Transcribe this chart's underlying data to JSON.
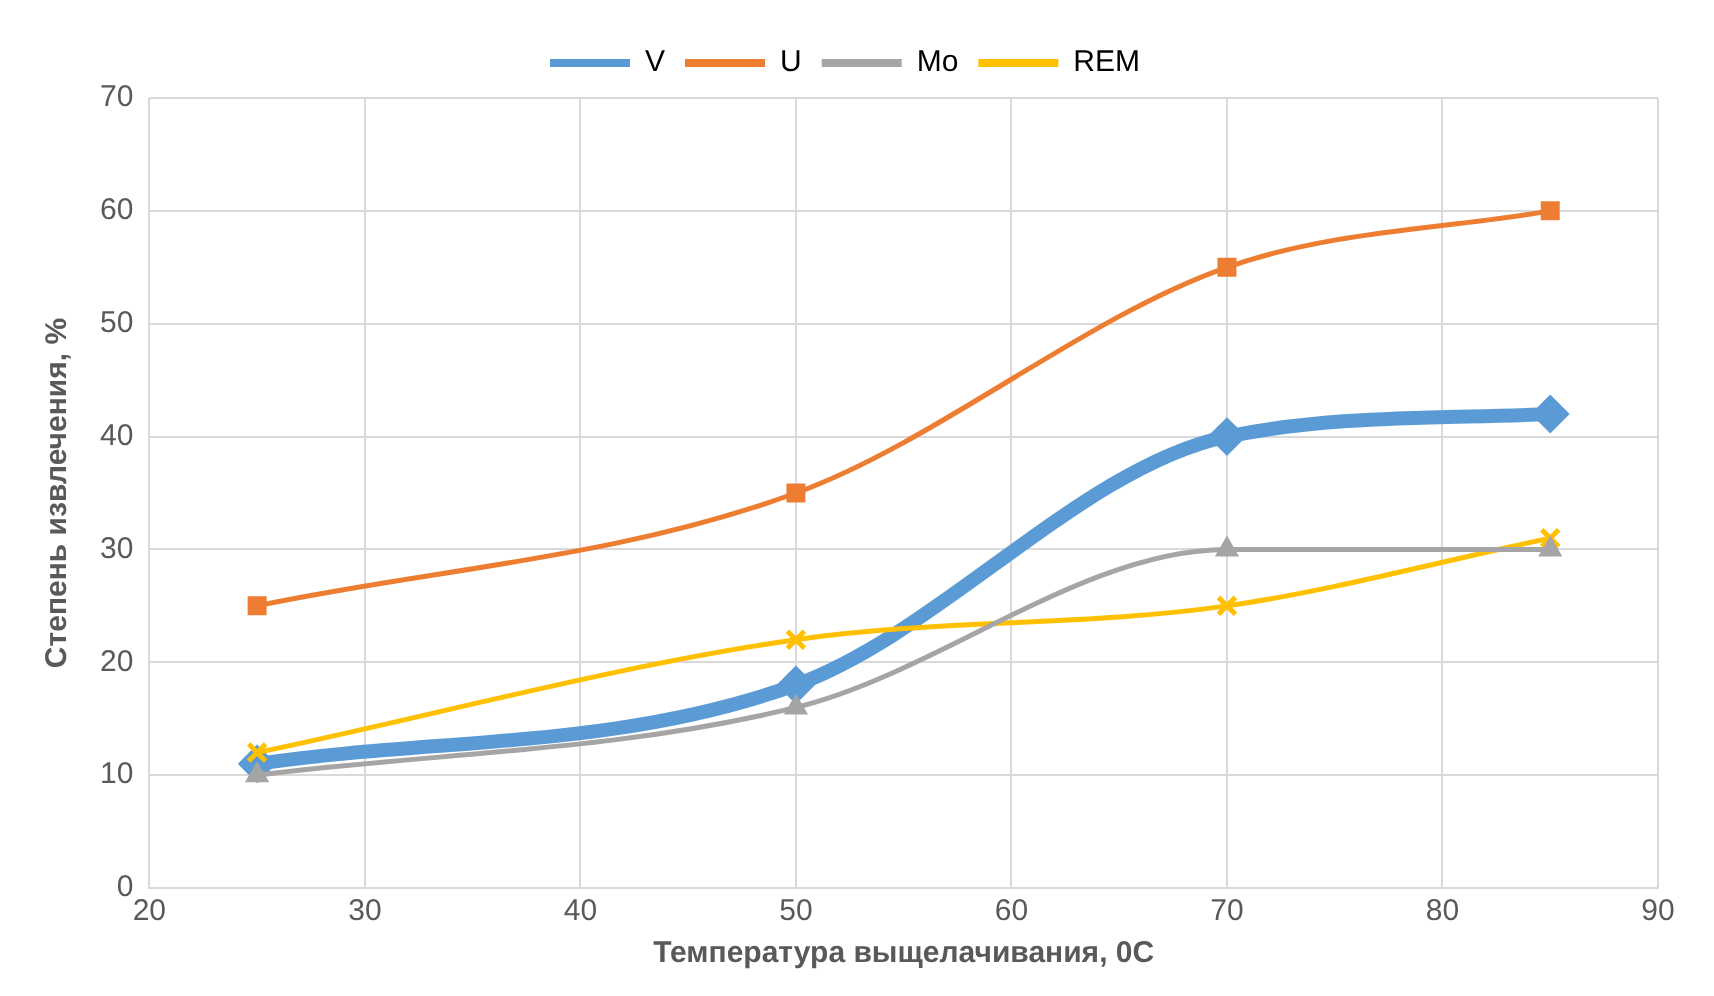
{
  "chart_data": {
    "type": "line",
    "xlabel": "Температура выщелачивания, 0С",
    "ylabel": "Степень извлечения, %",
    "x": [
      25,
      50,
      70,
      85
    ],
    "series": [
      {
        "name": "V",
        "color": "#5b9bd5",
        "marker": "diamond",
        "values": [
          11,
          18,
          40,
          42
        ]
      },
      {
        "name": "U",
        "color": "#ed7d31",
        "marker": "square",
        "values": [
          25,
          35,
          55,
          60
        ]
      },
      {
        "name": "Mo",
        "color": "#a5a5a5",
        "marker": "triangle",
        "values": [
          10,
          16,
          30,
          30
        ]
      },
      {
        "name": "REM",
        "color": "#ffc000",
        "marker": "cross",
        "values": [
          12,
          22,
          25,
          31
        ]
      }
    ],
    "xlim": [
      20,
      90
    ],
    "xticks": [
      20,
      30,
      40,
      50,
      60,
      70,
      80,
      90
    ],
    "ylim": [
      0,
      70
    ],
    "yticks": [
      0,
      10,
      20,
      30,
      40,
      50,
      60,
      70
    ],
    "grid": true,
    "legend": "top"
  }
}
